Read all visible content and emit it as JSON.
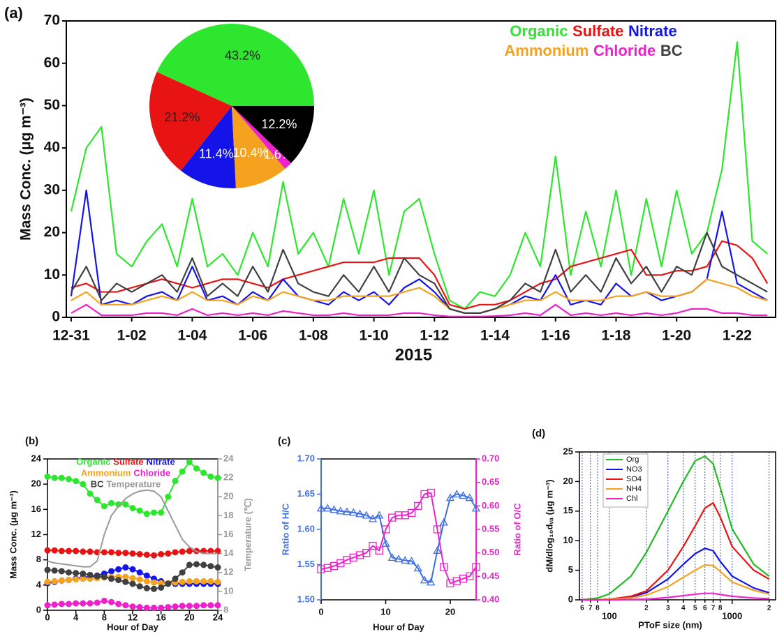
{
  "chart_data": [
    {
      "type": "line",
      "panel_label": "(a)",
      "ylabel": "Mass Conc. (μg m⁻³)",
      "xlabel": "2015",
      "xlim": [
        -0.16,
        23.27
      ],
      "ylim": [
        0,
        70
      ],
      "yticks": [
        0,
        10,
        20,
        30,
        40,
        50,
        60,
        70
      ],
      "xticks": [
        {
          "value": 0,
          "label": "12-31"
        },
        {
          "value": 2,
          "label": "1-02"
        },
        {
          "value": 4,
          "label": "1-04"
        },
        {
          "value": 6,
          "label": "1-06"
        },
        {
          "value": 8,
          "label": "1-08"
        },
        {
          "value": 10,
          "label": "1-10"
        },
        {
          "value": 12,
          "label": "1-12"
        },
        {
          "value": 14,
          "label": "1-14"
        },
        {
          "value": 16,
          "label": "1-16"
        },
        {
          "value": 18,
          "label": "1-18"
        },
        {
          "value": 20,
          "label": "1-20"
        },
        {
          "value": 22,
          "label": "1-22"
        }
      ],
      "legend": "upper right",
      "x": [
        0,
        0.5,
        1,
        1.5,
        2,
        2.5,
        3,
        3.5,
        4,
        4.5,
        5,
        5.5,
        6,
        6.5,
        7,
        7.5,
        8,
        8.5,
        9,
        9.5,
        10,
        10.5,
        11,
        11.5,
        12,
        12.5,
        13,
        13.5,
        14,
        14.5,
        15,
        15.5,
        16,
        16.5,
        17,
        17.5,
        18,
        18.5,
        19,
        19.5,
        20,
        20.5,
        21,
        21.5,
        22,
        22.5,
        23
      ],
      "series": [
        {
          "name": "Organic",
          "color": "#2ee62e",
          "values": [
            25,
            40,
            45,
            15,
            12,
            18,
            22,
            12,
            28,
            12,
            15,
            10,
            20,
            12,
            32,
            15,
            20,
            12,
            28,
            15,
            30,
            10,
            25,
            28,
            15,
            4,
            2,
            6,
            5,
            10,
            20,
            12,
            38,
            10,
            25,
            12,
            30,
            10,
            28,
            12,
            30,
            15,
            20,
            35,
            65,
            18,
            15
          ]
        },
        {
          "name": "Sulfate",
          "color": "#e81414",
          "values": [
            7,
            8,
            6,
            6,
            7,
            8,
            9,
            8,
            7,
            8,
            9,
            9,
            8,
            7,
            9,
            10,
            11,
            12,
            13,
            13,
            13,
            14,
            14,
            14,
            10,
            3,
            2,
            3,
            3,
            4,
            6,
            8,
            9,
            12,
            13,
            14,
            15,
            16,
            10,
            10,
            11,
            11,
            12,
            18,
            17,
            14,
            8
          ]
        },
        {
          "name": "Nitrate",
          "color": "#1414e8",
          "values": [
            5,
            30,
            3,
            4,
            3,
            5,
            6,
            4,
            12,
            4,
            5,
            3,
            6,
            4,
            9,
            5,
            4,
            3,
            6,
            4,
            6,
            3,
            7,
            9,
            6,
            2,
            1,
            1,
            2,
            3,
            5,
            4,
            10,
            3,
            4,
            3,
            8,
            5,
            6,
            4,
            5,
            6,
            9,
            25,
            8,
            6,
            4
          ]
        },
        {
          "name": "Ammonium",
          "color": "#f5a31e",
          "values": [
            4,
            6,
            3,
            3,
            3,
            4,
            5,
            4,
            6,
            4,
            4,
            3,
            5,
            4,
            6,
            5,
            4,
            4,
            5,
            5,
            5,
            5,
            6,
            7,
            5,
            2,
            1,
            1,
            2,
            3,
            4,
            4,
            6,
            4,
            4,
            4,
            5,
            5,
            6,
            5,
            5,
            6,
            9,
            8,
            7,
            5,
            4
          ]
        },
        {
          "name": "Chloride",
          "color": "#ee22cc",
          "values": [
            1,
            3,
            0.5,
            0.5,
            0.5,
            1,
            1,
            0.5,
            2,
            0.5,
            1,
            0.5,
            1,
            0.5,
            1.5,
            1,
            0.5,
            0.5,
            1,
            0.5,
            0.5,
            0.5,
            1,
            1,
            0.5,
            0.2,
            0.2,
            0.2,
            0.3,
            0.5,
            1,
            0.5,
            3,
            0.5,
            1,
            0.5,
            1,
            0.5,
            1,
            0.5,
            1,
            2,
            2,
            1,
            1,
            0.5,
            0.5
          ]
        },
        {
          "name": "BC",
          "color": "#404040",
          "values": [
            6,
            12,
            4,
            8,
            6,
            8,
            10,
            6,
            14,
            5,
            8,
            5,
            12,
            6,
            16,
            8,
            6,
            5,
            10,
            6,
            12,
            6,
            14,
            10,
            8,
            2,
            1,
            1,
            2,
            4,
            8,
            6,
            16,
            6,
            10,
            6,
            14,
            8,
            12,
            6,
            12,
            10,
            20,
            12,
            10,
            8,
            6
          ]
        }
      ]
    },
    {
      "type": "pie",
      "values": [
        43.2,
        21.2,
        11.4,
        10.4,
        1.6,
        12.2
      ],
      "value_labels": [
        "43.2%",
        "21.2%",
        "11.4%",
        "10.4%",
        "1.6%",
        "12.2%"
      ],
      "colors": [
        "#2ee62e",
        "#e81414",
        "#1414e8",
        "#f5a31e",
        "#ee22cc",
        "#000000"
      ],
      "label_colors": [
        "#222222",
        "#222222",
        "#ffffff",
        "#ffffff",
        "#ffffff",
        "#ffffff"
      ]
    },
    {
      "type": "line",
      "panel_label": "(b)",
      "ylabel": "Mass Conc. (μg m⁻³)",
      "y2label": "Temperature (℃)",
      "xlabel": "Hour of Day",
      "xlim": [
        0,
        24
      ],
      "xticks": [
        0,
        4,
        8,
        12,
        16,
        20,
        24
      ],
      "ylim": [
        0,
        24
      ],
      "yticks": [
        0,
        4,
        8,
        12,
        16,
        20,
        24
      ],
      "y2lim": [
        8,
        24
      ],
      "y2ticks": [
        8,
        10,
        12,
        14,
        16,
        18,
        20,
        22,
        24
      ],
      "y2color": "#999999",
      "legend": "upper center",
      "x": [
        0,
        1,
        2,
        3,
        4,
        5,
        6,
        7,
        8,
        9,
        10,
        11,
        12,
        13,
        14,
        15,
        16,
        17,
        18,
        19,
        20,
        21,
        22,
        23,
        24
      ],
      "series": [
        {
          "name": "Organic",
          "color": "#2ee62e",
          "marker": "circle",
          "values": [
            21.2,
            21,
            21,
            20.8,
            20.5,
            20,
            18.5,
            17.5,
            16.5,
            17,
            16.8,
            16.8,
            16.2,
            15.8,
            15.3,
            15.5,
            15.5,
            18,
            20.5,
            22,
            23.5,
            22.5,
            21.8,
            21.2,
            21
          ]
        },
        {
          "name": "Sulfate",
          "color": "#e81414",
          "marker": "circle",
          "values": [
            9.5,
            9.5,
            9.4,
            9.4,
            9.4,
            9.3,
            9.3,
            9.2,
            9.2,
            9.2,
            9.1,
            9.1,
            9.0,
            8.9,
            8.8,
            8.7,
            8.9,
            9.0,
            9.2,
            9.3,
            9.4,
            9.4,
            9.4,
            9.4,
            9.4
          ]
        },
        {
          "name": "Nitrate",
          "color": "#1414e8",
          "marker": "circle",
          "values": [
            4.3,
            4.5,
            4.7,
            4.8,
            5.0,
            5.2,
            5.3,
            5.5,
            5.8,
            6.2,
            6.5,
            6.8,
            6.5,
            6.0,
            5.5,
            5.0,
            4.6,
            4.3,
            4.2,
            4.2,
            4.2,
            4.2,
            4.2,
            4.2,
            4.2
          ]
        },
        {
          "name": "Ammonium",
          "color": "#f5a31e",
          "marker": "circle",
          "values": [
            4.5,
            4.6,
            4.7,
            4.8,
            4.9,
            5.0,
            5.0,
            5.1,
            5.2,
            5.3,
            5.3,
            5.3,
            5.1,
            4.9,
            4.6,
            4.4,
            4.3,
            4.3,
            4.4,
            4.5,
            4.6,
            4.6,
            4.6,
            4.6,
            4.5
          ]
        },
        {
          "name": "Chloride",
          "color": "#ee22cc",
          "marker": "circle",
          "values": [
            0.8,
            0.9,
            1.0,
            1.0,
            1.1,
            1.1,
            1.1,
            1.2,
            1.5,
            1.3,
            1.0,
            0.8,
            0.6,
            0.5,
            0.4,
            0.4,
            0.4,
            0.5,
            0.6,
            0.7,
            0.7,
            0.7,
            0.8,
            0.8,
            0.8
          ]
        },
        {
          "name": "BC",
          "color": "#404040",
          "marker": "circle",
          "values": [
            6.4,
            6.3,
            6.2,
            6.0,
            5.9,
            5.8,
            5.6,
            5.4,
            5.3,
            5.0,
            4.8,
            4.5,
            4.2,
            3.8,
            3.5,
            3.4,
            3.6,
            4.2,
            5.0,
            6.0,
            7.2,
            7.3,
            7.2,
            7.0,
            6.8
          ]
        },
        {
          "name": "Temperature",
          "color": "#999999",
          "axis": "y2",
          "values": [
            13.2,
            13.0,
            12.9,
            12.8,
            12.7,
            12.6,
            12.6,
            13.2,
            16,
            18,
            19,
            19.8,
            20.3,
            20.6,
            20.7,
            20.6,
            20,
            18.5,
            17,
            15.5,
            14.7,
            14.2,
            14,
            14,
            14
          ]
        }
      ]
    },
    {
      "type": "line",
      "panel_label": "(c)",
      "ylabel": "Ratio of H/C",
      "y2label": "Ratio of O/C",
      "xlabel": "Hour of Day",
      "xlim": [
        0,
        24
      ],
      "xticks": [
        0,
        10,
        20
      ],
      "ylim": [
        1.5,
        1.7
      ],
      "yticks": [
        {
          "value": 1.5,
          "label": "1.50"
        },
        1.55,
        {
          "value": 1.6,
          "label": "1.60"
        },
        1.65,
        {
          "value": 1.7,
          "label": "1.70"
        }
      ],
      "ycolor": "#3f6fe0",
      "y2lim": [
        0.4,
        0.7
      ],
      "y2ticks": [
        {
          "value": 0.4,
          "label": "0.40"
        },
        0.45,
        {
          "value": 0.5,
          "label": "0.50"
        },
        0.55,
        {
          "value": 0.6,
          "label": "0.60"
        },
        0.65,
        {
          "value": 0.7,
          "label": "0.70"
        }
      ],
      "y2color": "#ee22cc",
      "x": [
        0,
        1,
        2,
        3,
        4,
        5,
        6,
        7,
        8,
        9,
        10,
        11,
        12,
        13,
        14,
        15,
        16,
        17,
        18,
        19,
        20,
        21,
        22,
        23,
        24
      ],
      "series": [
        {
          "name": "H/C",
          "color": "#3f6fe0",
          "marker": "triangle",
          "values": [
            1.63,
            1.63,
            1.628,
            1.626,
            1.625,
            1.624,
            1.622,
            1.62,
            1.615,
            1.62,
            1.58,
            1.56,
            1.558,
            1.556,
            1.555,
            1.545,
            1.528,
            1.525,
            1.57,
            1.61,
            1.645,
            1.65,
            1.648,
            1.645,
            1.63
          ]
        },
        {
          "name": "O/C",
          "color": "#ee22cc",
          "marker": "square",
          "axis": "y2",
          "values": [
            0.465,
            0.468,
            0.472,
            0.478,
            0.485,
            0.49,
            0.495,
            0.5,
            0.515,
            0.505,
            0.55,
            0.575,
            0.58,
            0.58,
            0.585,
            0.6,
            0.625,
            0.628,
            0.55,
            0.47,
            0.435,
            0.44,
            0.445,
            0.45,
            0.47
          ]
        }
      ]
    },
    {
      "type": "line",
      "panel_label": "(d)",
      "ylabel": "dM/dlog₁₀dᵥₐ (μg m⁻³)",
      "xlabel": "PToF size (nm)",
      "xlog": true,
      "xgrid": true,
      "xlim": [
        57,
        2260
      ],
      "xticks": [
        {
          "value": 60,
          "label": "6"
        },
        {
          "value": 70,
          "label": "7"
        },
        {
          "value": 80,
          "label": "8"
        },
        100,
        {
          "value": 200,
          "label": "2"
        },
        {
          "value": 300,
          "label": "3"
        },
        {
          "value": 400,
          "label": "4"
        },
        {
          "value": 500,
          "label": "5"
        },
        {
          "value": 600,
          "label": "6"
        },
        {
          "value": 700,
          "label": "7"
        },
        {
          "value": 800,
          "label": "8"
        },
        1000,
        {
          "value": 2000,
          "label": "2"
        }
      ],
      "ylim": [
        0,
        25
      ],
      "yticks": [
        0,
        5,
        10,
        15,
        20,
        25
      ],
      "legend": "upper left",
      "x": [
        60,
        80,
        100,
        150,
        200,
        300,
        400,
        500,
        600,
        700,
        800,
        1000,
        1500,
        2000
      ],
      "series": [
        {
          "name": "Org",
          "color": "#22bb22",
          "values": [
            0,
            0.3,
            1,
            4,
            8,
            15,
            20,
            23.5,
            24.3,
            23,
            19,
            12,
            6,
            4
          ]
        },
        {
          "name": "NO3",
          "color": "#1414e8",
          "values": [
            0,
            0,
            0.1,
            0.5,
            1.2,
            3.5,
            6,
            7.8,
            8.7,
            8.3,
            6.5,
            4,
            2,
            1.2
          ]
        },
        {
          "name": "SO4",
          "color": "#e81414",
          "values": [
            0,
            0,
            0.1,
            0.6,
            1.5,
            5,
            9,
            12.5,
            15.5,
            16.4,
            14,
            9,
            5,
            3.5
          ]
        },
        {
          "name": "NH4",
          "color": "#f5a31e",
          "values": [
            0,
            0,
            0.1,
            0.3,
            0.8,
            2.2,
            3.8,
            5,
            5.9,
            5.8,
            4.8,
            3,
            1.6,
            1
          ]
        },
        {
          "name": "Chl",
          "color": "#ee22cc",
          "values": [
            0,
            0,
            0,
            0.05,
            0.1,
            0.4,
            0.7,
            0.95,
            1.1,
            1.1,
            0.9,
            0.6,
            0.3,
            0.2
          ]
        }
      ]
    }
  ]
}
